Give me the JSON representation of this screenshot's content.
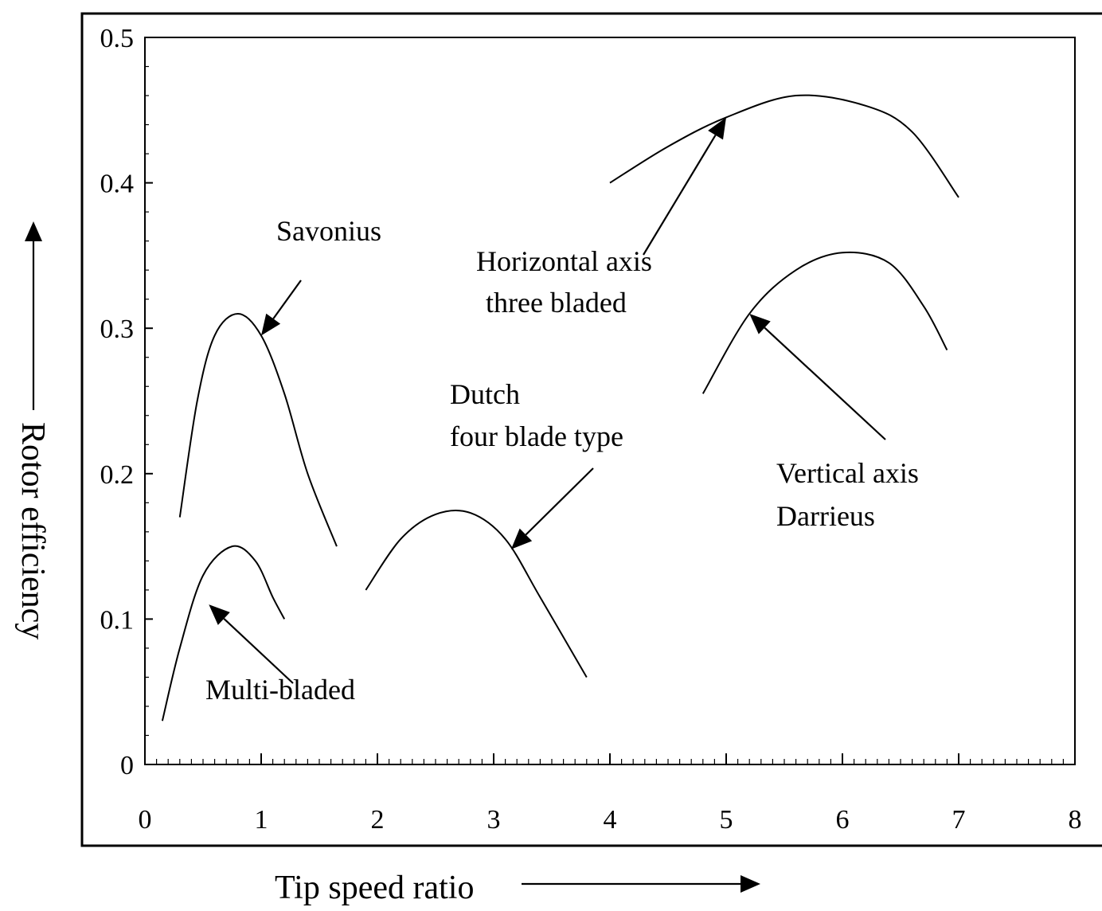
{
  "chart_data": {
    "type": "line",
    "xlabel": "Tip speed ratio",
    "ylabel": "Rotor efficiency",
    "xlim": [
      0,
      8
    ],
    "ylim": [
      0,
      0.5
    ],
    "x_ticks": [
      "0",
      "1",
      "2",
      "3",
      "4",
      "5",
      "6",
      "7",
      "8"
    ],
    "y_ticks": [
      "0",
      "0.1",
      "0.2",
      "0.3",
      "0.4",
      "0.5"
    ],
    "grid": false,
    "series": [
      {
        "name": "Savonius",
        "x": [
          0.3,
          0.45,
          0.6,
          0.8,
          1.0,
          1.2,
          1.4,
          1.65
        ],
        "y": [
          0.17,
          0.25,
          0.295,
          0.31,
          0.295,
          0.255,
          0.2,
          0.15
        ]
      },
      {
        "name": "Multi-bladed",
        "x": [
          0.15,
          0.3,
          0.5,
          0.75,
          0.95,
          1.1,
          1.2
        ],
        "y": [
          0.03,
          0.08,
          0.13,
          0.15,
          0.14,
          0.115,
          0.1
        ]
      },
      {
        "name": "Dutch four blade type",
        "x": [
          1.9,
          2.2,
          2.5,
          2.8,
          3.1,
          3.4,
          3.8
        ],
        "y": [
          0.12,
          0.155,
          0.172,
          0.173,
          0.155,
          0.115,
          0.06
        ]
      },
      {
        "name": "Horizontal axis three bladed",
        "x": [
          4.0,
          4.5,
          5.0,
          5.6,
          6.2,
          6.6,
          7.0
        ],
        "y": [
          0.4,
          0.425,
          0.445,
          0.46,
          0.453,
          0.435,
          0.39
        ]
      },
      {
        "name": "Vertical axis Darrieus",
        "x": [
          4.8,
          5.2,
          5.6,
          6.0,
          6.4,
          6.7,
          6.9
        ],
        "y": [
          0.255,
          0.31,
          0.34,
          0.352,
          0.345,
          0.315,
          0.285
        ]
      }
    ],
    "annotations": [
      {
        "text": [
          "Savonius"
        ],
        "points_to": [
          1.0,
          0.295
        ]
      },
      {
        "text": [
          "Multi-bladed"
        ],
        "points_to": [
          0.55,
          0.11
        ]
      },
      {
        "text": [
          "Dutch",
          "four blade type"
        ],
        "points_to": [
          3.15,
          0.148
        ]
      },
      {
        "text": [
          "Horizontal axis",
          "three bladed"
        ],
        "points_to": [
          5.0,
          0.445
        ]
      },
      {
        "text": [
          "Vertical axis",
          "Darrieus"
        ],
        "points_to": [
          5.2,
          0.31
        ]
      }
    ]
  }
}
